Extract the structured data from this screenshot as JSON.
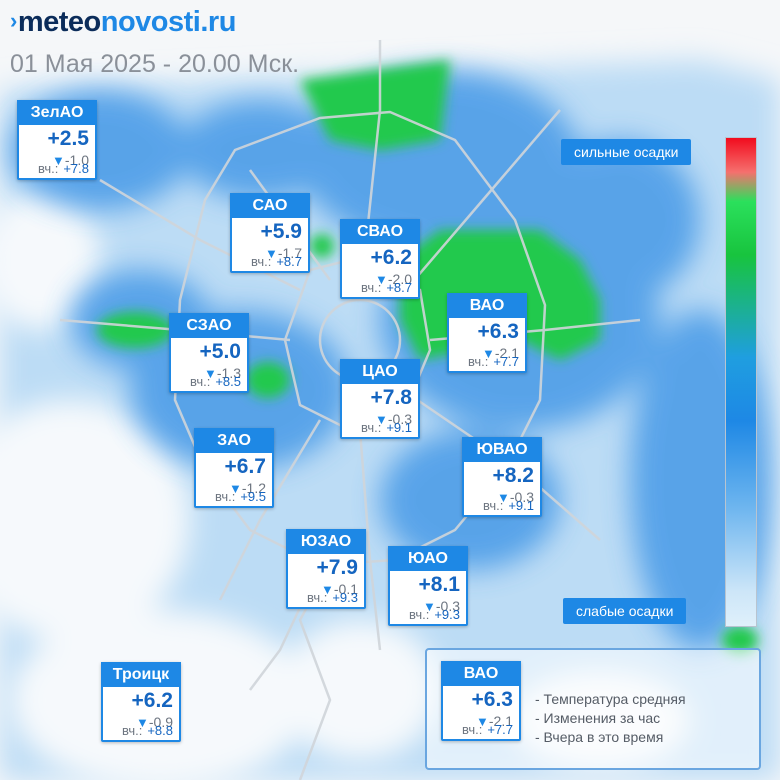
{
  "header": {
    "brand_part1": "meteo",
    "brand_part2": "novosti.ru",
    "brand_mark": "›",
    "datetime": "01 Мая 2025 - 20.00 Мск."
  },
  "map": {
    "base_color": "#f5f7f9",
    "roads_color": "#d0d5da",
    "light_precip_color": "#bcdcf5",
    "medium_precip_color": "#3f95e6",
    "heavy_precip_color": "#22c94e"
  },
  "labels": {
    "yesterday_prefix": "вч.:",
    "delta_arrow": "▼"
  },
  "districts": [
    {
      "name": "ЗелАО",
      "temp": "+2.5",
      "delta": "-1.0",
      "yesterday": "+7.8"
    },
    {
      "name": "САО",
      "temp": "+5.9",
      "delta": "-1.7",
      "yesterday": "+8.7"
    },
    {
      "name": "СВАО",
      "temp": "+6.2",
      "delta": "-2.0",
      "yesterday": "+8.7"
    },
    {
      "name": "ВАО",
      "temp": "+6.3",
      "delta": "-2.1",
      "yesterday": "+7.7"
    },
    {
      "name": "СЗАО",
      "temp": "+5.0",
      "delta": "-1.3",
      "yesterday": "+8.5"
    },
    {
      "name": "ЦАО",
      "temp": "+7.8",
      "delta": "-0.3",
      "yesterday": "+9.1"
    },
    {
      "name": "ЗАО",
      "temp": "+6.7",
      "delta": "-1.2",
      "yesterday": "+9.5"
    },
    {
      "name": "ЮВАО",
      "temp": "+8.2",
      "delta": "-0.3",
      "yesterday": "+9.1"
    },
    {
      "name": "ЮЗАО",
      "temp": "+7.9",
      "delta": "-0.1",
      "yesterday": "+9.3"
    },
    {
      "name": "ЮАО",
      "temp": "+8.1",
      "delta": "-0.3",
      "yesterday": "+9.3"
    },
    {
      "name": "Троицк",
      "temp": "+6.2",
      "delta": "-0.9",
      "yesterday": "+8.8"
    }
  ],
  "scale": {
    "top_label": "сильные осадки",
    "bottom_label": "слабые осадки"
  },
  "legend": {
    "example": {
      "name": "ВАО",
      "temp": "+6.3",
      "delta": "-2.1",
      "yesterday": "+7.7"
    },
    "line1": "- Температура средняя",
    "line2": "- Изменения за час",
    "line3": "- Вчера в это время"
  }
}
